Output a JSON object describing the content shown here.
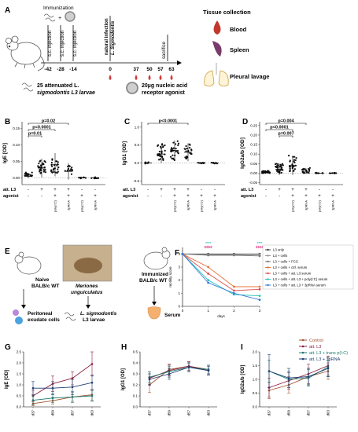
{
  "panel_letters": [
    "A",
    "B",
    "C",
    "D",
    "E",
    "F",
    "G",
    "H",
    "I"
  ],
  "panel_a": {
    "immunization": "Immunization",
    "injections": [
      "s.c. injection",
      "s.c. injection",
      "s.c. injection"
    ],
    "natural_infection": [
      "natural infection",
      "L. Sigmodontis"
    ],
    "sacrifice": "sacrifice",
    "days": [
      "-42",
      "-28",
      "-14",
      "0",
      "37",
      "50",
      "57",
      "63"
    ],
    "larvae_note": [
      "25 attenuated L.",
      "sigmodontis L3 larvae"
    ],
    "agonist_note": [
      "20µg nucleic acid",
      "receptor agonist"
    ],
    "tissue_collection": "Tissue collection",
    "tissues": [
      "Blood",
      "Spleen",
      "Pleural lavage"
    ]
  },
  "panels_bcd": [
    {
      "ylabel": "IgE [OD]",
      "yticks": [
        "0.00",
        "0.05",
        "0.10",
        "0.15"
      ],
      "pvalues": [
        "p=0.02",
        "p<0.0001",
        "p=0.01"
      ],
      "groups": [
        {
          "center": 0.01,
          "n": 22,
          "spread": 0.012,
          "mean": 0.005,
          "sd": 0.006
        },
        {
          "center": 0.03,
          "n": 30,
          "spread": 0.04,
          "mean": 0.03,
          "sd": 0.028
        },
        {
          "center": 0.035,
          "n": 26,
          "spread": 0.05,
          "mean": 0.04,
          "sd": 0.035
        },
        {
          "center": 0.02,
          "n": 14,
          "spread": 0.03,
          "mean": 0.02,
          "sd": 0.025
        },
        {
          "center": 0.0,
          "n": 8,
          "spread": 0.004,
          "mean": 0.0,
          "sd": 0.002
        },
        {
          "center": 0.0,
          "n": 8,
          "spread": 0.004,
          "mean": 0.0,
          "sd": 0.002
        }
      ]
    },
    {
      "ylabel": "IgG1 [OD]",
      "yticks": [
        "-0.5",
        "0.0",
        "0.5",
        "1.0"
      ],
      "pvalues": [
        "p<0.0001"
      ],
      "groups": [
        {
          "center": 0.0,
          "n": 6,
          "spread": 0.05,
          "mean": 0.0,
          "sd": 0.02
        },
        {
          "center": 0.25,
          "n": 30,
          "spread": 0.5,
          "mean": 0.25,
          "sd": 0.25
        },
        {
          "center": 0.3,
          "n": 26,
          "spread": 0.55,
          "mean": 0.35,
          "sd": 0.28
        },
        {
          "center": 0.3,
          "n": 24,
          "spread": 0.45,
          "mean": 0.3,
          "sd": 0.25
        },
        {
          "center": 0.0,
          "n": 8,
          "spread": 0.03,
          "mean": 0.0,
          "sd": 0.02
        },
        {
          "center": 0.0,
          "n": 8,
          "spread": 0.03,
          "mean": 0.0,
          "sd": 0.02
        }
      ]
    },
    {
      "ylabel": "IgG2a/b [OD]",
      "yticks": [
        "-0.05",
        "0.00",
        "0.05",
        "0.10",
        "0.15",
        "0.20",
        "0.25"
      ],
      "pvalues": [
        "p=0.004",
        "p<0.0001",
        "p=0.007"
      ],
      "groups": [
        {
          "center": 0.005,
          "n": 24,
          "spread": 0.012,
          "mean": 0.005,
          "sd": 0.005
        },
        {
          "center": 0.02,
          "n": 30,
          "spread": 0.05,
          "mean": 0.02,
          "sd": 0.03
        },
        {
          "center": 0.04,
          "n": 28,
          "spread": 0.09,
          "mean": 0.04,
          "sd": 0.05
        },
        {
          "center": 0.01,
          "n": 20,
          "spread": 0.03,
          "mean": 0.01,
          "sd": 0.015
        },
        {
          "center": 0.0,
          "n": 8,
          "spread": 0.004,
          "mean": 0.0,
          "sd": 0.002
        },
        {
          "center": 0.0,
          "n": 8,
          "spread": 0.004,
          "mean": 0.0,
          "sd": 0.002
        }
      ]
    }
  ],
  "group_table": {
    "row_labels": [
      "att. L3",
      "agonist"
    ],
    "att_l3": [
      "-",
      "+",
      "+",
      "+",
      "-",
      "-"
    ],
    "agonist": [
      "-",
      "-",
      "+",
      "+",
      "+",
      "+"
    ],
    "agonists": [
      "poly(I:C)",
      "3pRNA",
      "poly(I:C)",
      "3pRNA"
    ]
  },
  "panel_e": {
    "naive": [
      "Naive",
      "BALB/c WT"
    ],
    "meriones": [
      "Meriones",
      "unguiculatus"
    ],
    "immunized": [
      "Immunized",
      "BALB/c WT"
    ],
    "peritoneal": [
      "Peritoneal",
      "exudate cells"
    ],
    "larvae": [
      "L. sigmodontis",
      "L3 larvae"
    ],
    "serum": "Serum"
  },
  "colors": {
    "gray": "#9a9a9a",
    "orange": "#e8743b",
    "darkred": "#8b1e3f",
    "teal": "#1d7a6e",
    "cyan": "#29c4c0",
    "brown": "#a0522d",
    "purple": "#7b2d6b",
    "green": "#2e6b4f",
    "navy": "#1f3d73",
    "blue": "#3a7bd5",
    "red": "#e05050",
    "pink": "#e0458f"
  },
  "panel_f": {
    "ylabel": "motility score",
    "xlabel": "days",
    "xticks": [
      "0",
      "1",
      "2",
      "3"
    ],
    "yticks": [
      "0",
      "1",
      "2",
      "3",
      "4"
    ],
    "sig": [
      "****",
      "$$$$",
      "****",
      "$$$$"
    ],
    "legend": [
      "L3 only",
      "L3 + cells",
      "L3 + cells + FCS",
      "L3 + cells + ctrl. serum",
      "L3 + cells + att. L3 serum",
      "L3 + cells + att. L3 + poly(I:C) serum",
      "L3 + cells + att. L3 + 3pRNA serum"
    ],
    "series": [
      {
        "color": "#444444",
        "values": [
          4,
          4,
          4,
          4
        ]
      },
      {
        "color": "#9a9a9a",
        "values": [
          4,
          3.95,
          3.95,
          3.95
        ]
      },
      {
        "color": "#777777",
        "values": [
          4,
          3.9,
          3.9,
          3.85
        ]
      },
      {
        "color": "#e8743b",
        "values": [
          4,
          3.0,
          1.5,
          1.5
        ]
      },
      {
        "color": "#e05050",
        "values": [
          4,
          2.5,
          1.2,
          1.3
        ]
      },
      {
        "color": "#29c4c0",
        "values": [
          4,
          2.0,
          0.9,
          0.8
        ]
      },
      {
        "color": "#3a7bd5",
        "values": [
          4,
          1.8,
          1.0,
          0.5
        ]
      }
    ]
  },
  "panels_ghi": [
    {
      "ylabel": "IgE [OD]",
      "yticks": [
        "0.0",
        "0.5",
        "1.0",
        "1.5",
        "2.0",
        "2.5"
      ],
      "xticks": [
        "d37",
        "d50",
        "d57",
        "d63"
      ],
      "series": [
        {
          "values": [
            0.15,
            0.28,
            0.45,
            0.55
          ],
          "err": [
            0.1,
            0.15,
            0.2,
            0.25
          ]
        },
        {
          "values": [
            0.5,
            1.05,
            1.3,
            1.95
          ],
          "err": [
            0.25,
            0.35,
            0.3,
            0.55
          ]
        },
        {
          "values": [
            0.3,
            0.4,
            0.45,
            0.5
          ],
          "err": [
            0.2,
            0.2,
            0.25,
            0.25
          ]
        },
        {
          "values": [
            0.85,
            0.85,
            0.9,
            1.1
          ],
          "err": [
            0.3,
            0.3,
            0.35,
            0.35
          ]
        }
      ]
    },
    {
      "ylabel": "IgG1 [OD]",
      "yticks": [
        "0.0",
        "0.1",
        "0.2",
        "0.3",
        "0.4",
        "0.5"
      ],
      "xticks": [
        "d37",
        "d50",
        "d57",
        "d63"
      ],
      "series": [
        {
          "values": [
            0.2,
            0.34,
            0.37,
            0.34
          ],
          "err": [
            0.07,
            0.05,
            0.04,
            0.04
          ]
        },
        {
          "values": [
            0.26,
            0.33,
            0.37,
            0.33
          ],
          "err": [
            0.06,
            0.05,
            0.04,
            0.04
          ]
        },
        {
          "values": [
            0.27,
            0.32,
            0.36,
            0.34
          ],
          "err": [
            0.05,
            0.05,
            0.04,
            0.04
          ]
        },
        {
          "values": [
            0.25,
            0.3,
            0.36,
            0.33
          ],
          "err": [
            0.05,
            0.05,
            0.04,
            0.04
          ]
        }
      ]
    },
    {
      "ylabel": "IgG2a/b [OD]",
      "yticks": [
        "0.0",
        "0.5",
        "1.0",
        "1.5",
        "2.0"
      ],
      "xticks": [
        "d37",
        "d50",
        "d57",
        "d63"
      ],
      "legend": [
        "Control",
        "att. L3",
        "att. L3 + trans p(I:C)",
        "att. L3 + 3pRNA"
      ],
      "series": [
        {
          "values": [
            0.6,
            0.8,
            1.1,
            1.3
          ],
          "err": [
            0.3,
            0.3,
            0.3,
            0.3
          ]
        },
        {
          "values": [
            0.7,
            0.95,
            1.2,
            1.5
          ],
          "err": [
            0.35,
            0.3,
            0.35,
            0.35
          ]
        },
        {
          "values": [
            1.3,
            1.0,
            1.05,
            1.45
          ],
          "err": [
            0.4,
            0.3,
            0.3,
            0.35
          ]
        },
        {
          "values": [
            1.3,
            1.05,
            1.1,
            1.4
          ],
          "err": [
            0.6,
            0.35,
            0.3,
            0.3
          ]
        }
      ]
    }
  ]
}
